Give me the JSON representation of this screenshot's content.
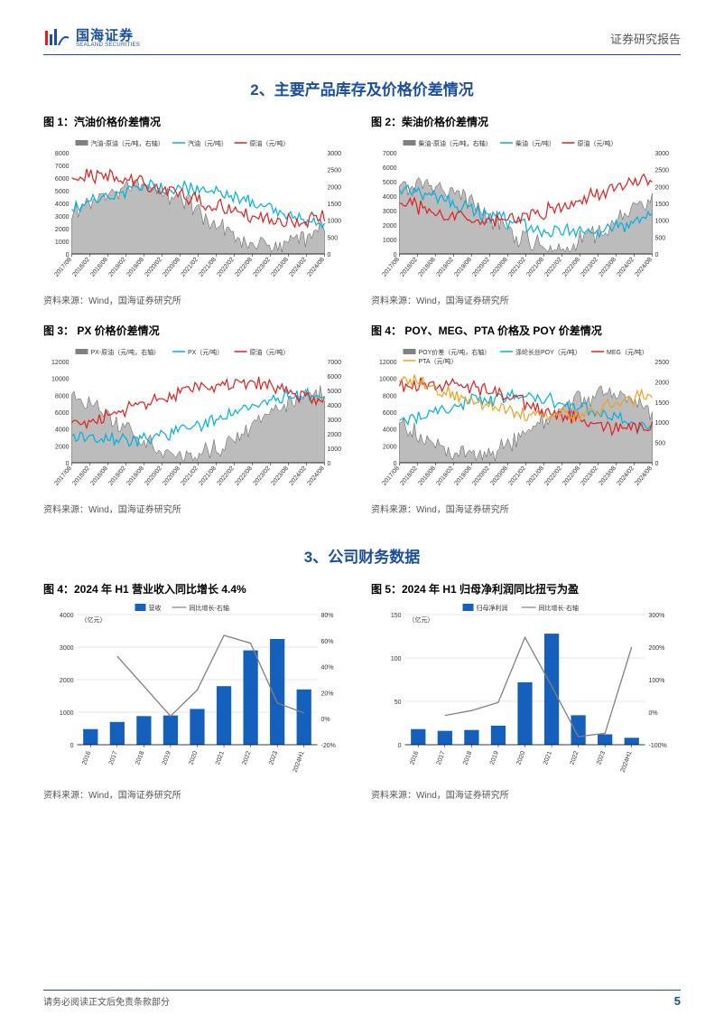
{
  "header": {
    "logo_cn": "国海证券",
    "logo_en": "SEALAND SECURITIES",
    "doc_type": "证券研究报告"
  },
  "section2": {
    "title": "2、主要产品库存及价格价差情况",
    "charts": [
      {
        "title": "图 1：汽油价格价差情况",
        "legend": [
          "汽油-原油（元/吨，右轴）",
          "汽油（元/吨）",
          "原油（元/吨）"
        ],
        "legend_colors": [
          "#808080",
          "#00b0e0",
          "#e02020"
        ],
        "y_left": {
          "min": 0,
          "max": 8000,
          "step": 1000
        },
        "y_right": {
          "min": 0,
          "max": 3000,
          "step": 500
        },
        "x_labels": [
          "2017/08",
          "2018/02",
          "2018/08",
          "2019/02",
          "2019/08",
          "2020/02",
          "2020/08",
          "2021/02",
          "2021/08",
          "2022/02",
          "2022/08",
          "2023/02",
          "2023/08",
          "2024/02",
          "2024/08"
        ],
        "area_color": "#b0b0b0",
        "line_colors": [
          "#00b0e0",
          "#e02020"
        ],
        "source": "资料来源：Wind，国海证券研究所"
      },
      {
        "title": "图 2：柴油价格价差情况",
        "legend": [
          "柴油-原油（元/吨，右轴）",
          "柴油（元/吨）",
          "原油（元/吨）"
        ],
        "legend_colors": [
          "#808080",
          "#00b0e0",
          "#e02020"
        ],
        "y_left": {
          "min": 0,
          "max": 7000,
          "step": 1000
        },
        "y_right": {
          "min": 0,
          "max": 3000,
          "step": 500
        },
        "x_labels": [
          "2017/08",
          "2018/02",
          "2018/08",
          "2019/02",
          "2019/08",
          "2020/02",
          "2020/08",
          "2021/02",
          "2021/08",
          "2022/02",
          "2022/08",
          "2023/02",
          "2023/08",
          "2024/02",
          "2024/08"
        ],
        "area_color": "#b0b0b0",
        "line_colors": [
          "#00b0e0",
          "#e02020"
        ],
        "source": "资料来源：Wind，国海证券研究所"
      },
      {
        "title": "图 3：  PX 价格价差情况",
        "legend": [
          "PX-原油（元/吨，右轴）",
          "PX（元/吨）",
          "原油（元/吨）"
        ],
        "legend_colors": [
          "#808080",
          "#00b0e0",
          "#e02020"
        ],
        "y_left": {
          "min": 0,
          "max": 12000,
          "step": 2000
        },
        "y_right": {
          "min": 0,
          "max": 7000,
          "step": 1000
        },
        "x_labels": [
          "2017/08",
          "2018/02",
          "2018/08",
          "2019/02",
          "2019/08",
          "2020/02",
          "2020/08",
          "2021/02",
          "2021/08",
          "2022/02",
          "2022/08",
          "2023/02",
          "2023/08",
          "2024/02",
          "2024/08"
        ],
        "area_color": "#b0b0b0",
        "line_colors": [
          "#00b0e0",
          "#e02020"
        ],
        "source": "资料来源：Wind，国海证券研究所"
      },
      {
        "title": "图 4： POY、MEG、PTA 价格及 POY 价差情况",
        "legend": [
          "POY价差（元/吨，右轴）",
          "涤纶长丝POY（元/吨）",
          "MEG（元/吨）",
          "PTA（元/吨）"
        ],
        "legend_colors": [
          "#808080",
          "#00b0e0",
          "#e02020",
          "#f0a020"
        ],
        "y_left": {
          "min": 0,
          "max": 12000,
          "step": 2000
        },
        "y_right": {
          "min": 0,
          "max": 2500,
          "step": 500
        },
        "x_labels": [
          "2017/08",
          "2018/02",
          "2018/08",
          "2019/02",
          "2019/08",
          "2020/02",
          "2020/08",
          "2021/02",
          "2021/08",
          "2022/02",
          "2022/08",
          "2023/02",
          "2023/08",
          "2024/02",
          "2024/08"
        ],
        "area_color": "#b0b0b0",
        "line_colors": [
          "#00b0e0",
          "#e02020",
          "#f0a020"
        ],
        "source": "资料来源：Wind，国海证券研究所"
      }
    ]
  },
  "section3": {
    "title": "3、公司财务数据",
    "charts": [
      {
        "title": "图 4：2024 年 H1 营业收入同比增长 4.4%",
        "type": "bar_line",
        "legend": [
          "营收",
          "同比增长-右轴"
        ],
        "legend_colors": [
          "#1560bd",
          "#808080"
        ],
        "unit_left": "（亿元）",
        "y_left": {
          "min": 0,
          "max": 4000,
          "step": 1000
        },
        "y_right": {
          "min": -20,
          "max": 80,
          "step": 20,
          "suffix": "%"
        },
        "x_labels": [
          "2016",
          "2017",
          "2018",
          "2019",
          "2020",
          "2021",
          "2022",
          "2023",
          "2024H1"
        ],
        "bar_values": [
          480,
          700,
          880,
          900,
          1100,
          1800,
          2900,
          3250,
          1700
        ],
        "line_values": [
          null,
          48,
          25,
          2,
          22,
          64,
          58,
          12,
          4.4
        ],
        "bar_color": "#1560bd",
        "line_color": "#808080",
        "source": "资料来源：Wind，国海证券研究所"
      },
      {
        "title": "图 5：2024 年 H1 归母净利润同比扭亏为盈",
        "type": "bar_line",
        "legend": [
          "归母净利润",
          "同比增长-右轴"
        ],
        "legend_colors": [
          "#1560bd",
          "#808080"
        ],
        "unit_left": "（亿元）",
        "y_left": {
          "min": 0,
          "max": 150,
          "step": 50
        },
        "y_right": {
          "min": -100,
          "max": 300,
          "step": 100,
          "suffix": "%"
        },
        "x_labels": [
          "2016",
          "2017",
          "2018",
          "2019",
          "2020",
          "2021",
          "2022",
          "2023",
          "2024H1"
        ],
        "bar_values": [
          18,
          16,
          17,
          22,
          72,
          128,
          34,
          12,
          8
        ],
        "line_values": [
          null,
          -10,
          5,
          30,
          230,
          80,
          -75,
          -65,
          200
        ],
        "bar_color": "#1560bd",
        "line_color": "#808080",
        "source": "资料来源：Wind，国海证券研究所"
      }
    ]
  },
  "footer": {
    "text": "请务必阅读正文后免责条款部分",
    "page_num": "5"
  }
}
